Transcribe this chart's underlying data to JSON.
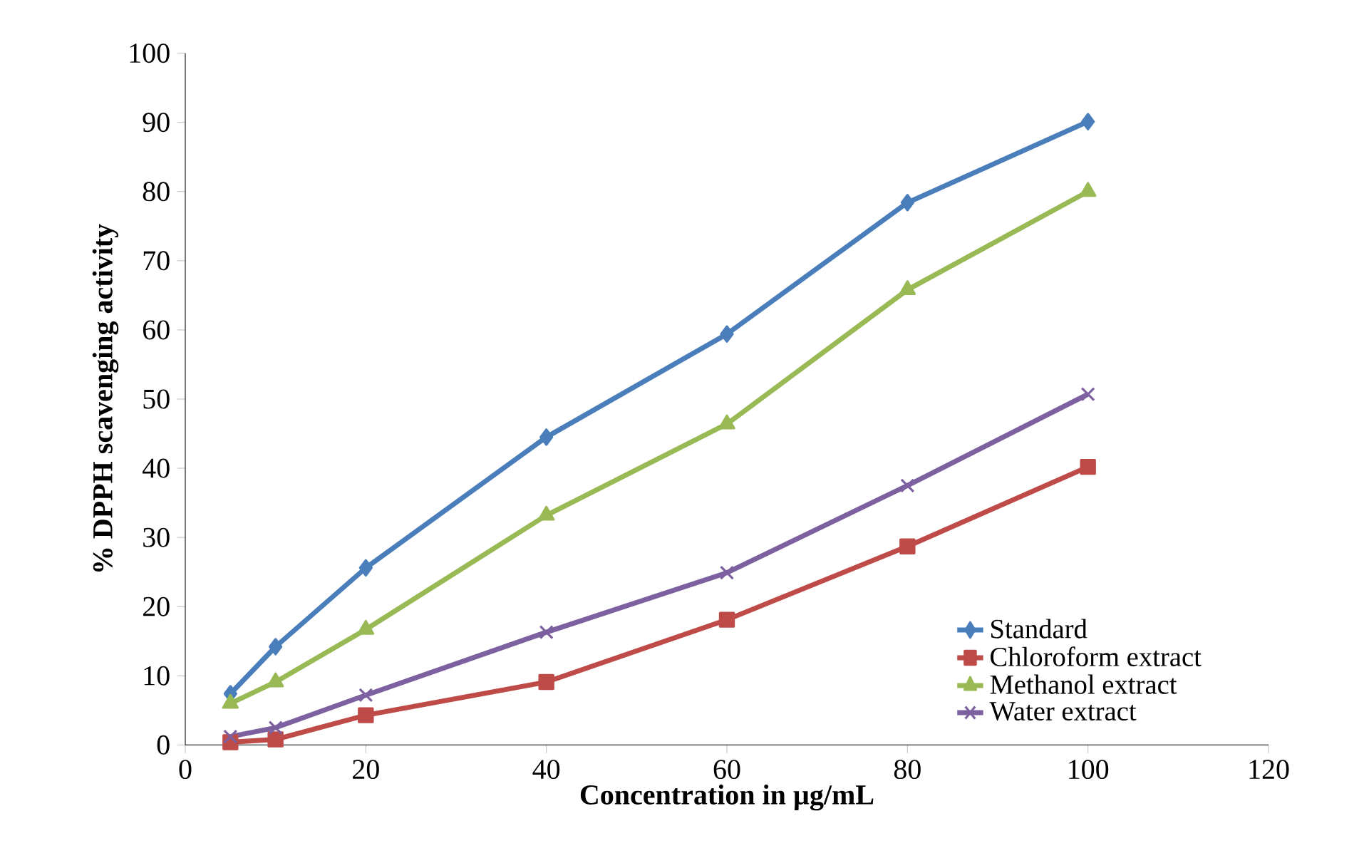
{
  "chart_data": {
    "type": "line",
    "xlabel": "Concentration in µg/mL",
    "ylabel": "% DPPH scavenging activity",
    "x": [
      5,
      10,
      20,
      40,
      60,
      80,
      100
    ],
    "series": [
      {
        "name": "Standard",
        "color": "#4a7ebb",
        "marker": "diamond",
        "values": [
          7.4,
          14.2,
          25.6,
          44.5,
          59.4,
          78.4,
          90.1
        ]
      },
      {
        "name": "Chloroform extract",
        "color": "#be4b48",
        "marker": "square",
        "values": [
          0.4,
          0.8,
          4.3,
          9.1,
          18.1,
          28.7,
          40.2
        ]
      },
      {
        "name": "Methanol extract",
        "color": "#98b954",
        "marker": "triangle",
        "values": [
          6,
          9.1,
          16.7,
          33.2,
          46.4,
          65.8,
          80
        ]
      },
      {
        "name": "Water extract",
        "color": "#7d60a0",
        "marker": "cross",
        "values": [
          1.2,
          2.5,
          7.2,
          16.3,
          24.9,
          37.5,
          50.7
        ]
      }
    ],
    "xlim": [
      0,
      120
    ],
    "xticks": [
      0,
      20,
      40,
      60,
      80,
      100,
      120
    ],
    "ylim": [
      0,
      100
    ],
    "yticks": [
      0,
      10,
      20,
      30,
      40,
      50,
      60,
      70,
      80,
      90,
      100
    ],
    "grid": false,
    "legend": "bottom right",
    "line_style": "solid"
  }
}
